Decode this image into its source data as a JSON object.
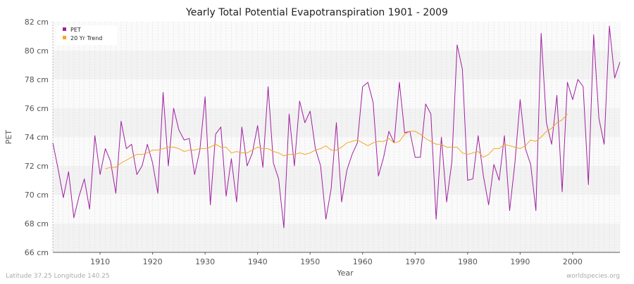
{
  "chart_data": {
    "type": "line",
    "title": "Yearly Total Potential Evapotranspiration 1901 - 2009",
    "xlabel": "Year",
    "ylabel": "PET",
    "xlim": [
      1901,
      2009
    ],
    "ylim": [
      66,
      82
    ],
    "x_ticks": [
      1910,
      1920,
      1930,
      1940,
      1950,
      1960,
      1970,
      1980,
      1990,
      2000
    ],
    "y_ticks": [
      66,
      68,
      70,
      72,
      74,
      76,
      78,
      80,
      82
    ],
    "y_tick_labels": [
      "66 cm",
      "68 cm",
      "70 cm",
      "72 cm",
      "74 cm",
      "76 cm",
      "78 cm",
      "80 cm",
      "82 cm"
    ],
    "grid": true,
    "legend_position": "top-left",
    "series": [
      {
        "name": "PET",
        "color": "#a020a0",
        "x": [
          1901,
          1902,
          1903,
          1904,
          1905,
          1906,
          1907,
          1908,
          1909,
          1910,
          1911,
          1912,
          1913,
          1914,
          1915,
          1916,
          1917,
          1918,
          1919,
          1920,
          1921,
          1922,
          1923,
          1924,
          1925,
          1926,
          1927,
          1928,
          1929,
          1930,
          1931,
          1932,
          1933,
          1934,
          1935,
          1936,
          1937,
          1938,
          1939,
          1940,
          1941,
          1942,
          1943,
          1944,
          1945,
          1946,
          1947,
          1948,
          1949,
          1950,
          1951,
          1952,
          1953,
          1954,
          1955,
          1956,
          1957,
          1958,
          1959,
          1960,
          1961,
          1962,
          1963,
          1964,
          1965,
          1966,
          1967,
          1968,
          1969,
          1970,
          1971,
          1972,
          1973,
          1974,
          1975,
          1976,
          1977,
          1978,
          1979,
          1980,
          1981,
          1982,
          1983,
          1984,
          1985,
          1986,
          1987,
          1988,
          1989,
          1990,
          1991,
          1992,
          1993,
          1994,
          1995,
          1996,
          1997,
          1998,
          1999,
          2000,
          2001,
          2002,
          2003,
          2004,
          2005,
          2006,
          2007,
          2008,
          2009
        ],
        "values": [
          73.6,
          71.8,
          69.8,
          71.6,
          68.4,
          69.9,
          71.1,
          69.0,
          74.1,
          71.4,
          73.2,
          72.3,
          70.1,
          75.1,
          73.2,
          73.5,
          71.4,
          72.0,
          73.5,
          72.2,
          70.1,
          77.1,
          72.0,
          76.0,
          74.5,
          73.8,
          73.9,
          71.4,
          73.1,
          76.8,
          69.3,
          74.2,
          74.7,
          69.9,
          72.5,
          69.5,
          74.7,
          72.0,
          72.9,
          74.8,
          71.9,
          77.5,
          72.2,
          71.1,
          67.7,
          75.6,
          72.0,
          76.5,
          75.0,
          75.8,
          73.2,
          72.0,
          68.3,
          70.4,
          75.0,
          69.5,
          71.7,
          72.8,
          73.6,
          77.5,
          77.8,
          76.4,
          71.3,
          72.6,
          74.4,
          73.6,
          77.8,
          74.3,
          74.4,
          72.6,
          72.6,
          76.3,
          75.6,
          68.3,
          74.0,
          69.5,
          72.3,
          80.4,
          78.7,
          71.0,
          71.1,
          74.1,
          71.3,
          69.3,
          72.1,
          71.0,
          74.1,
          68.9,
          72.2,
          76.6,
          73.2,
          72.1,
          68.9,
          81.2,
          75.0,
          73.5,
          76.9,
          70.2,
          77.8,
          76.6,
          78.0,
          77.5,
          70.7,
          81.1,
          75.3,
          73.5,
          81.7,
          78.1,
          79.2
        ]
      },
      {
        "name": "20 Yr Trend",
        "color": "#f5a623",
        "x": [
          1911,
          1912,
          1913,
          1914,
          1915,
          1916,
          1917,
          1918,
          1919,
          1920,
          1921,
          1922,
          1923,
          1924,
          1925,
          1926,
          1927,
          1928,
          1929,
          1930,
          1931,
          1932,
          1933,
          1934,
          1935,
          1936,
          1937,
          1938,
          1939,
          1940,
          1941,
          1942,
          1943,
          1944,
          1945,
          1946,
          1947,
          1948,
          1949,
          1950,
          1951,
          1952,
          1953,
          1954,
          1955,
          1956,
          1957,
          1958,
          1959,
          1960,
          1961,
          1962,
          1963,
          1964,
          1965,
          1966,
          1967,
          1968,
          1969,
          1970,
          1971,
          1972,
          1973,
          1974,
          1975,
          1976,
          1977,
          1978,
          1979,
          1980,
          1981,
          1982,
          1983,
          1984,
          1985,
          1986,
          1987,
          1988,
          1989,
          1990,
          1991,
          1992,
          1993,
          1994,
          1995,
          1996,
          1997,
          1998,
          1999
        ],
        "values": [
          71.8,
          71.9,
          71.9,
          72.2,
          72.4,
          72.6,
          72.8,
          72.8,
          72.9,
          73.1,
          73.1,
          73.2,
          73.3,
          73.3,
          73.2,
          73.0,
          73.1,
          73.1,
          73.2,
          73.2,
          73.3,
          73.5,
          73.3,
          73.3,
          72.9,
          73.0,
          72.9,
          72.9,
          73.1,
          73.3,
          73.2,
          73.2,
          73.0,
          72.9,
          72.7,
          72.8,
          72.8,
          72.9,
          72.8,
          72.9,
          73.1,
          73.2,
          73.4,
          73.1,
          73.1,
          73.3,
          73.6,
          73.7,
          73.8,
          73.6,
          73.4,
          73.6,
          73.7,
          73.7,
          73.9,
          73.6,
          73.7,
          74.2,
          74.4,
          74.4,
          74.2,
          73.9,
          73.7,
          73.5,
          73.5,
          73.3,
          73.3,
          73.3,
          72.9,
          72.8,
          72.9,
          73.0,
          72.6,
          72.8,
          73.2,
          73.2,
          73.5,
          73.4,
          73.3,
          73.2,
          73.4,
          73.8,
          73.7,
          74.0,
          74.4,
          74.6,
          75.0,
          75.2,
          75.6
        ]
      }
    ]
  },
  "footer": {
    "location": "Latitude 37.25 Longitude 140.25",
    "source": "worldspecies.org"
  }
}
